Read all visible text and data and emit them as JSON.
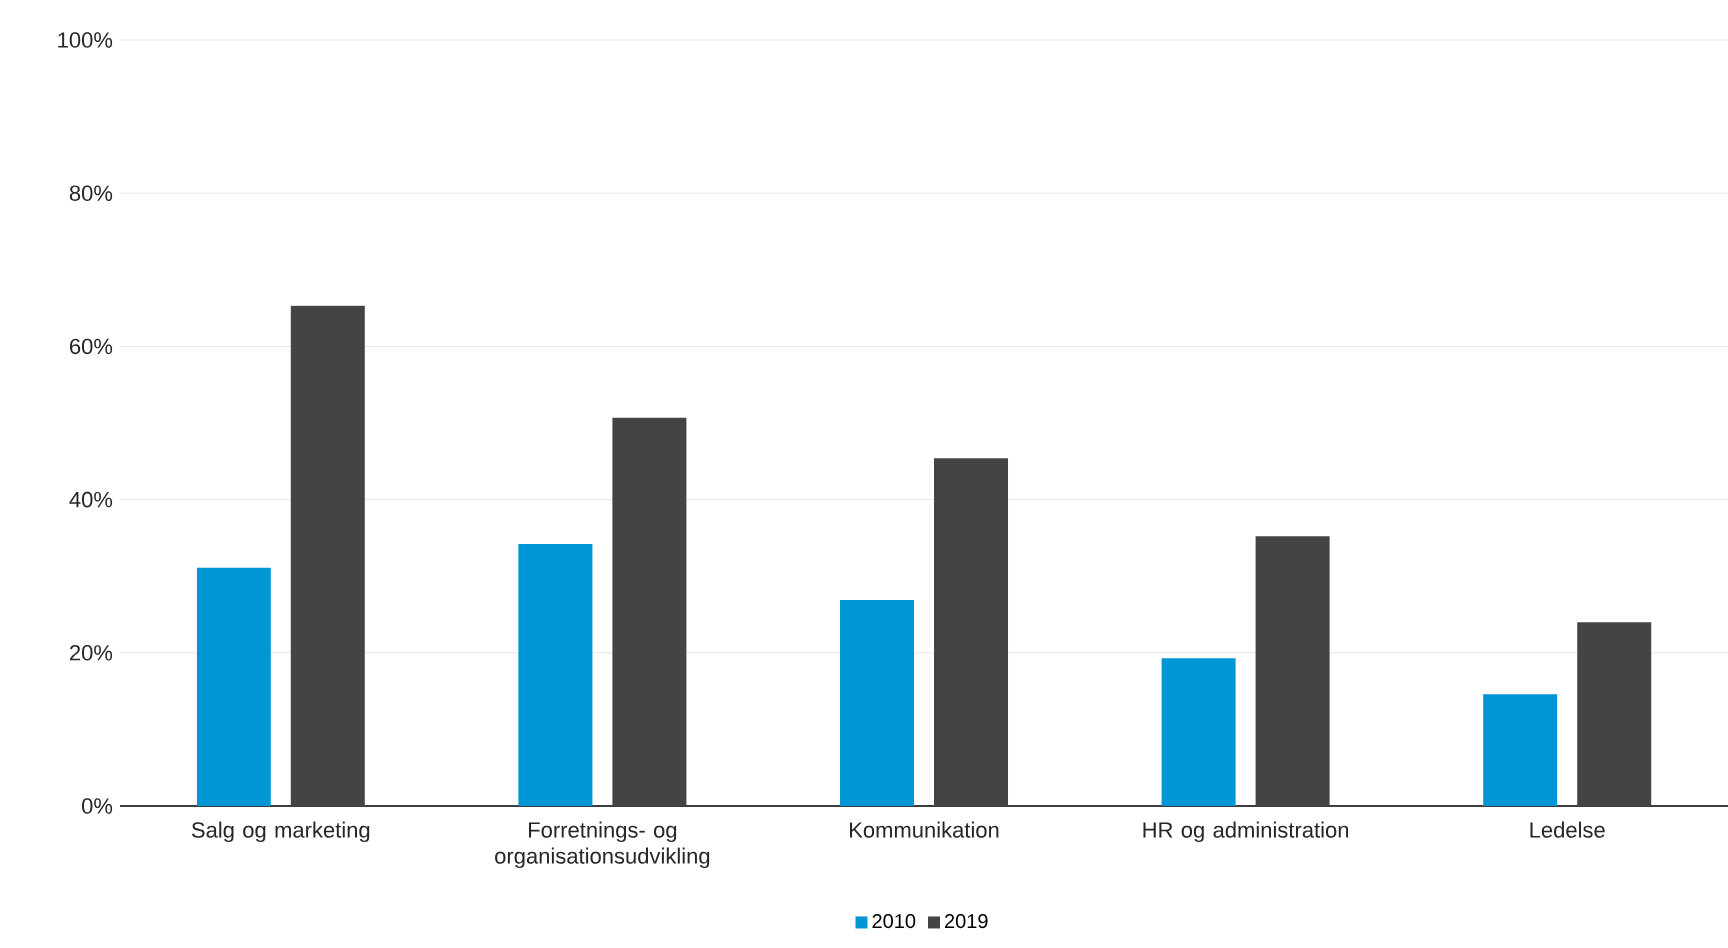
{
  "chart_data": {
    "type": "bar",
    "categories": [
      "Salg og marketing",
      "Forretnings- og organisationsudvikling",
      "Kommunikation",
      "HR og administration",
      "Ledelse"
    ],
    "series": [
      {
        "name": "2010",
        "color": "#0096d6",
        "values": [
          31.1,
          34.2,
          26.9,
          19.3,
          14.6
        ]
      },
      {
        "name": "2019",
        "color": "#444444",
        "values": [
          65.3,
          50.7,
          45.4,
          35.2,
          24.0
        ]
      }
    ],
    "ylim": [
      0,
      100
    ],
    "yticks": [
      {
        "value": 0,
        "label": "0%"
      },
      {
        "value": 20,
        "label": "20%"
      },
      {
        "value": 40,
        "label": "40%"
      },
      {
        "value": 60,
        "label": "60%"
      },
      {
        "value": 80,
        "label": "80%"
      },
      {
        "value": 100,
        "label": "100%"
      }
    ],
    "grid": "y",
    "legend": "bottom"
  }
}
